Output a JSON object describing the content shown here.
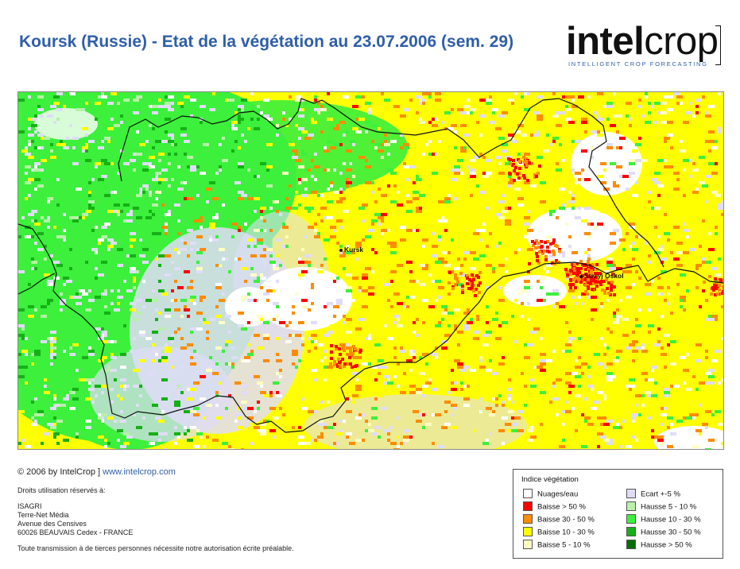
{
  "title": "Koursk (Russie) - Etat de la végétation au 23.07.2006 (sem. 29)",
  "logo": {
    "word_bold": "intel",
    "word_light": "crop",
    "tagline": "INTELLIGENT CROP FORECASTING"
  },
  "map": {
    "cities": [
      {
        "name": "Kursk"
      },
      {
        "name": "Staryj Oskol"
      }
    ]
  },
  "footer": {
    "copyright": "© 2006 by IntelCrop ]",
    "website": "www.intelcrop.com",
    "rights": "Droits utilisation réservés à:",
    "address": [
      "ISAGRI",
      "Terre-Net Média",
      "Avenue des Censives",
      "60026 BEAUVAIS Cedex - FRANCE"
    ],
    "notice": "Toute transmission à de tierces personnes nécessite notre autorisation écrite préalable."
  },
  "legend": {
    "title": "Indice végétation",
    "items": [
      {
        "label": "Nuages/eau",
        "color": "#ffffff"
      },
      {
        "label": "Baisse > 50 %",
        "color": "#ff0000"
      },
      {
        "label": "Baisse 30 - 50 %",
        "color": "#ff8c00"
      },
      {
        "label": "Baisse 10 - 30 %",
        "color": "#ffff00"
      },
      {
        "label": "Baisse 5 - 10 %",
        "color": "#ffffc0"
      },
      {
        "label": "Ecart +-5 %",
        "color": "#e0dcf8"
      },
      {
        "label": "Hausse 5 - 10 %",
        "color": "#b8f0a8"
      },
      {
        "label": "Hausse 10 - 30 %",
        "color": "#3cf03c"
      },
      {
        "label": "Hausse 30 - 50 %",
        "color": "#16b016"
      },
      {
        "label": "Hausse > 50 %",
        "color": "#007000"
      }
    ]
  }
}
